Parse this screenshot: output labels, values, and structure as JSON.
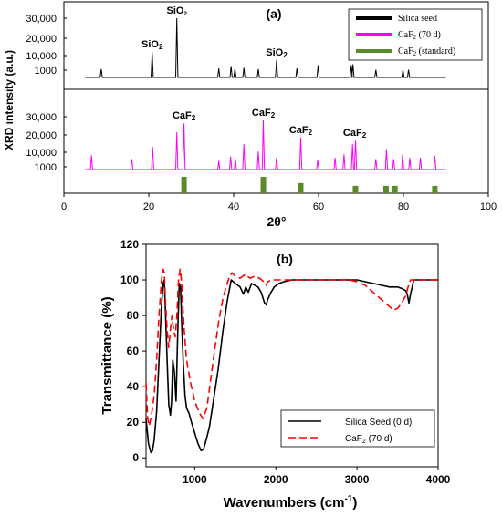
{
  "chart_data": [
    {
      "panel_label": "(a)",
      "type": "line",
      "xlabel": "2θ°",
      "ylabel": "XRD intensity (a.u.)",
      "xlim": [
        0,
        100
      ],
      "x_ticks": [
        "0",
        "20",
        "40",
        "60",
        "80",
        "100"
      ],
      "top_y_ticks": [
        "30,000",
        "20,000",
        "10,000",
        "1000"
      ],
      "bottom_y_ticks": [
        "30,000",
        "20,000",
        "10,000",
        "1000"
      ],
      "legend_position": "top-right",
      "series": [
        {
          "name": "Silica seed",
          "color": "#000000",
          "baseline_x": [
            5,
            90
          ],
          "peaks": [
            [
              8.8,
              600
            ],
            [
              20.8,
              5500
            ],
            [
              26.6,
              30000
            ],
            [
              36.5,
              700
            ],
            [
              39.4,
              1100
            ],
            [
              40.3,
              700
            ],
            [
              42.4,
              800
            ],
            [
              45.8,
              600
            ],
            [
              50.1,
              2500
            ],
            [
              54.9,
              700
            ],
            [
              59.9,
              1300
            ],
            [
              67.7,
              1300
            ],
            [
              68.1,
              1500
            ],
            [
              73.5,
              500
            ],
            [
              79.9,
              500
            ],
            [
              81.2,
              500
            ]
          ]
        },
        {
          "name": "CaF2 (70 d)",
          "color": "#ff00ff",
          "baseline_x": [
            5,
            90
          ],
          "peaks": [
            [
              6.5,
              2200
            ],
            [
              16.0,
              1200
            ],
            [
              20.9,
              5500
            ],
            [
              26.6,
              15000
            ],
            [
              28.3,
              23000
            ],
            [
              36.5,
              800
            ],
            [
              39.3,
              1800
            ],
            [
              40.4,
              1200
            ],
            [
              42.4,
              7000
            ],
            [
              45.8,
              3500
            ],
            [
              47.0,
              26000
            ],
            [
              50.1,
              1500
            ],
            [
              55.8,
              11000
            ],
            [
              59.8,
              1000
            ],
            [
              63.9,
              1500
            ],
            [
              66.0,
              2500
            ],
            [
              68.0,
              7000
            ],
            [
              68.7,
              9000
            ],
            [
              73.5,
              1200
            ],
            [
              76.0,
              4500
            ],
            [
              77.7,
              1200
            ],
            [
              79.8,
              2500
            ],
            [
              81.5,
              1500
            ],
            [
              84.0,
              1500
            ],
            [
              87.4,
              2000
            ]
          ]
        },
        {
          "name": "CaF2 (standard)",
          "type": "bar",
          "color": "#5a8a2a",
          "x": [
            28.3,
            47.0,
            55.8,
            68.7,
            75.9,
            78.0,
            87.4
          ],
          "relative": [
            1.0,
            1.0,
            0.62,
            0.45,
            0.45,
            0.45,
            0.45
          ]
        }
      ],
      "annotations": [
        {
          "text": "SiO2",
          "x": 26.6,
          "panel": "top",
          "small": true
        },
        {
          "text": "SiO2",
          "x": 20.8,
          "panel": "top"
        },
        {
          "text": "SiO2",
          "x": 50.1,
          "panel": "top"
        },
        {
          "text": "CaF2",
          "x": 28.3,
          "panel": "bottom"
        },
        {
          "text": "CaF2",
          "x": 47.0,
          "panel": "bottom"
        },
        {
          "text": "CaF2",
          "x": 55.8,
          "panel": "bottom"
        },
        {
          "text": "CaF2",
          "x": 68.5,
          "panel": "bottom"
        }
      ]
    },
    {
      "panel_label": "(b)",
      "type": "line",
      "xlabel": "Wavenumbers (cm-1)",
      "ylabel": "Transmittance (%)",
      "xlim": [
        400,
        4000
      ],
      "ylim": [
        -5,
        120
      ],
      "x_ticks": [
        1000,
        2000,
        3000,
        4000
      ],
      "y_ticks": [
        0,
        20,
        40,
        60,
        80,
        100,
        120
      ],
      "legend_position": "bottom-right",
      "series": [
        {
          "name": "Silica Seed (0 d)",
          "color": "#000000",
          "dash": "solid",
          "x": [
            400,
            430,
            460,
            480,
            500,
            530,
            560,
            590,
            610,
            625,
            640,
            660,
            680,
            700,
            715,
            730,
            750,
            770,
            790,
            810,
            825,
            840,
            860,
            880,
            900,
            930,
            960,
            1000,
            1040,
            1080,
            1110,
            1140,
            1180,
            1230,
            1290,
            1350,
            1400,
            1450,
            1500,
            1560,
            1600,
            1630,
            1660,
            1700,
            1740,
            1780,
            1820,
            1860,
            1880,
            1900,
            1940,
            1980,
            2040,
            2100,
            2200,
            2400,
            2600,
            2800,
            3000,
            3100,
            3200,
            3300,
            3400,
            3500,
            3560,
            3600,
            3620,
            3640,
            3660,
            3700,
            3800,
            3900,
            4000
          ],
          "y": [
            22,
            8,
            3,
            4,
            10,
            26,
            55,
            85,
            98,
            100,
            82,
            55,
            30,
            24,
            32,
            55,
            48,
            32,
            70,
            98,
            96,
            75,
            52,
            35,
            28,
            25,
            20,
            14,
            8,
            4,
            5,
            10,
            17,
            32,
            50,
            72,
            88,
            100,
            98,
            96,
            92,
            96,
            93,
            98,
            97,
            96,
            93,
            87,
            86,
            89,
            93,
            96,
            98,
            99,
            100,
            100,
            100,
            100,
            100,
            99,
            98,
            97,
            96,
            96,
            95,
            94,
            92,
            87,
            92,
            100,
            100,
            100,
            100
          ]
        },
        {
          "name": "CaF2 (70 d)",
          "color": "#ff0000",
          "dash": "dashed",
          "x": [
            400,
            420,
            440,
            470,
            500,
            530,
            560,
            590,
            610,
            625,
            640,
            660,
            680,
            700,
            720,
            740,
            760,
            780,
            800,
            820,
            835,
            850,
            870,
            900,
            950,
            1000,
            1050,
            1100,
            1150,
            1200,
            1250,
            1300,
            1350,
            1400,
            1430,
            1460,
            1500,
            1560,
            1620,
            1680,
            1740,
            1800,
            1850,
            1880,
            1900,
            1950,
            2000,
            2100,
            2400,
            2700,
            2900,
            3000,
            3100,
            3200,
            3300,
            3400,
            3450,
            3500,
            3550,
            3600,
            3630,
            3660,
            3700,
            3800,
            3900,
            4000
          ],
          "y": [
            42,
            22,
            18,
            25,
            35,
            55,
            80,
            100,
            106,
            104,
            88,
            72,
            62,
            72,
            80,
            72,
            68,
            80,
            100,
            106,
            100,
            88,
            72,
            55,
            42,
            32,
            26,
            22,
            28,
            45,
            62,
            78,
            90,
            98,
            102,
            104,
            102,
            101,
            103,
            101,
            102,
            101,
            99,
            97,
            99,
            100,
            100,
            100,
            100,
            100,
            100,
            99,
            97,
            93,
            89,
            85,
            83,
            84,
            87,
            91,
            96,
            100,
            100,
            100,
            100,
            100
          ]
        }
      ]
    }
  ]
}
